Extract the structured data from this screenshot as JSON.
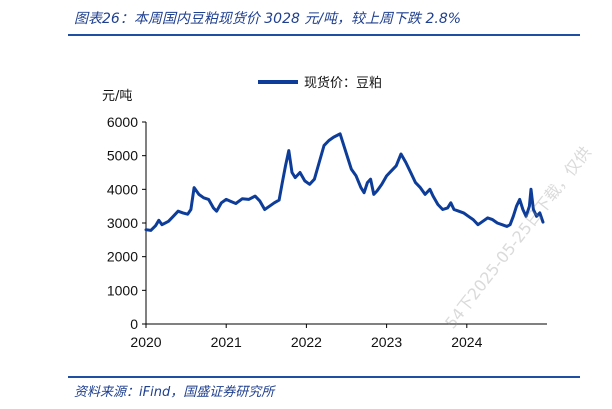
{
  "header": {
    "title": "图表26：本周国内豆粕现货价 3028 元/吨，较上周下跌 2.8%"
  },
  "footer": {
    "source": "资料来源：iFind，国盛证券研究所",
    "watermark": "54下2025-05-25日下载，仅供"
  },
  "chart_data": {
    "type": "line",
    "ylabel": "元/吨",
    "ylim": [
      0,
      6000
    ],
    "yticks": [
      0,
      1000,
      2000,
      3000,
      4000,
      5000,
      6000
    ],
    "xlim": [
      2020.0,
      2025.0
    ],
    "xticks": [
      2020,
      2021,
      2022,
      2023,
      2024
    ],
    "xtick_labels": [
      "2020",
      "2021",
      "2022",
      "2023",
      "2024"
    ],
    "grid": false,
    "legend_position": "top-center",
    "series": [
      {
        "name": "现货价：豆粕",
        "color": "#0d3d99",
        "points": [
          [
            2020.0,
            2800
          ],
          [
            2020.06,
            2780
          ],
          [
            2020.12,
            2920
          ],
          [
            2020.16,
            3080
          ],
          [
            2020.2,
            2950
          ],
          [
            2020.28,
            3050
          ],
          [
            2020.34,
            3200
          ],
          [
            2020.4,
            3350
          ],
          [
            2020.46,
            3300
          ],
          [
            2020.52,
            3260
          ],
          [
            2020.56,
            3400
          ],
          [
            2020.6,
            4050
          ],
          [
            2020.66,
            3850
          ],
          [
            2020.72,
            3750
          ],
          [
            2020.78,
            3700
          ],
          [
            2020.84,
            3450
          ],
          [
            2020.88,
            3350
          ],
          [
            2020.94,
            3600
          ],
          [
            2021.0,
            3700
          ],
          [
            2021.06,
            3640
          ],
          [
            2021.12,
            3580
          ],
          [
            2021.2,
            3720
          ],
          [
            2021.28,
            3700
          ],
          [
            2021.36,
            3800
          ],
          [
            2021.42,
            3650
          ],
          [
            2021.48,
            3400
          ],
          [
            2021.54,
            3500
          ],
          [
            2021.6,
            3600
          ],
          [
            2021.66,
            3680
          ],
          [
            2021.7,
            4200
          ],
          [
            2021.74,
            4700
          ],
          [
            2021.78,
            5150
          ],
          [
            2021.82,
            4500
          ],
          [
            2021.86,
            4350
          ],
          [
            2021.92,
            4500
          ],
          [
            2021.98,
            4250
          ],
          [
            2022.04,
            4150
          ],
          [
            2022.1,
            4300
          ],
          [
            2022.16,
            4800
          ],
          [
            2022.22,
            5300
          ],
          [
            2022.28,
            5450
          ],
          [
            2022.34,
            5550
          ],
          [
            2022.38,
            5600
          ],
          [
            2022.42,
            5650
          ],
          [
            2022.48,
            5200
          ],
          [
            2022.52,
            4900
          ],
          [
            2022.56,
            4600
          ],
          [
            2022.62,
            4400
          ],
          [
            2022.68,
            4050
          ],
          [
            2022.72,
            3900
          ],
          [
            2022.76,
            4200
          ],
          [
            2022.8,
            4300
          ],
          [
            2022.84,
            3850
          ],
          [
            2022.88,
            3950
          ],
          [
            2022.94,
            4150
          ],
          [
            2023.0,
            4400
          ],
          [
            2023.06,
            4550
          ],
          [
            2023.12,
            4700
          ],
          [
            2023.18,
            5050
          ],
          [
            2023.24,
            4800
          ],
          [
            2023.3,
            4500
          ],
          [
            2023.36,
            4200
          ],
          [
            2023.42,
            4050
          ],
          [
            2023.48,
            3850
          ],
          [
            2023.54,
            4000
          ],
          [
            2023.58,
            3800
          ],
          [
            2023.64,
            3550
          ],
          [
            2023.7,
            3400
          ],
          [
            2023.76,
            3450
          ],
          [
            2023.8,
            3600
          ],
          [
            2023.84,
            3400
          ],
          [
            2023.9,
            3350
          ],
          [
            2023.96,
            3300
          ],
          [
            2024.02,
            3200
          ],
          [
            2024.08,
            3100
          ],
          [
            2024.14,
            2950
          ],
          [
            2024.2,
            3050
          ],
          [
            2024.26,
            3150
          ],
          [
            2024.32,
            3100
          ],
          [
            2024.38,
            3000
          ],
          [
            2024.44,
            2950
          ],
          [
            2024.5,
            2900
          ],
          [
            2024.54,
            2950
          ],
          [
            2024.58,
            3200
          ],
          [
            2024.62,
            3500
          ],
          [
            2024.66,
            3700
          ],
          [
            2024.7,
            3400
          ],
          [
            2024.74,
            3200
          ],
          [
            2024.78,
            3500
          ],
          [
            2024.8,
            4000
          ],
          [
            2024.83,
            3400
          ],
          [
            2024.87,
            3200
          ],
          [
            2024.91,
            3300
          ],
          [
            2024.95,
            3028
          ]
        ]
      }
    ]
  }
}
